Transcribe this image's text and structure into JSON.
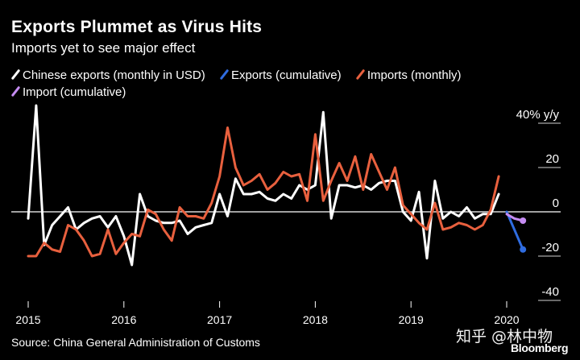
{
  "header": {
    "title": "Exports Plummet as Virus Hits",
    "subtitle": "Imports yet to see major effect"
  },
  "legend": [
    {
      "label": "Chinese exports (monthly in USD)",
      "color": "#ffffff"
    },
    {
      "label": "Exports (cumulative)",
      "color": "#2f6ce0"
    },
    {
      "label": "Imports (monthly)",
      "color": "#e8603e"
    },
    {
      "label": "Import (cumulative)",
      "color": "#c58cf2"
    }
  ],
  "footer": {
    "source": "Source: China General Administration of Customs",
    "watermark": "知乎 @林中物",
    "brand": "Bloomberg"
  },
  "chart_data": {
    "type": "line",
    "title": "Exports Plummet as Virus Hits",
    "ylabel": "% y/y",
    "ylim": [
      -45,
      40
    ],
    "xlim": [
      2014.92,
      2020.3
    ],
    "y_ticks": [
      {
        "value": 40,
        "label": "40% y/y"
      },
      {
        "value": 20,
        "label": "20"
      },
      {
        "value": 0,
        "label": "0"
      },
      {
        "value": -20,
        "label": "-20"
      },
      {
        "value": -40,
        "label": "-40"
      }
    ],
    "x_ticks": [
      {
        "value": 2015,
        "label": "2015"
      },
      {
        "value": 2016,
        "label": "2016"
      },
      {
        "value": 2017,
        "label": "2017"
      },
      {
        "value": 2018,
        "label": "2018"
      },
      {
        "value": 2019,
        "label": "2019"
      },
      {
        "value": 2020,
        "label": "2020"
      }
    ],
    "x_start": 2015.0,
    "x_step": 0.08333,
    "series": [
      {
        "name": "Chinese exports (monthly in USD)",
        "color": "#ffffff",
        "values": [
          -3,
          48,
          -15,
          -6,
          -2,
          2,
          -8,
          -5,
          -3,
          -2,
          -7,
          -2,
          -11,
          -24,
          8,
          -2,
          -4,
          -5,
          -5,
          -4,
          -10,
          -7,
          -6,
          -5,
          8,
          -2,
          15,
          8,
          8,
          9,
          6,
          5,
          8,
          6,
          12,
          10,
          12,
          45,
          -3,
          12,
          12,
          11,
          12,
          10,
          13,
          14,
          14,
          0,
          -4,
          9,
          -21,
          14,
          -3,
          0,
          -2,
          2,
          -3,
          -1,
          -1,
          8
        ],
        "x_start": 2015.0
      },
      {
        "name": "Exports (cumulative)",
        "color": "#2f6ce0",
        "points": [
          [
            2020.0,
            0
          ],
          [
            2020.17,
            -17
          ]
        ]
      },
      {
        "name": "Imports (monthly)",
        "color": "#e8603e",
        "values": [
          -20,
          -20,
          -14,
          -17,
          -18,
          -6,
          -8,
          -13,
          -20,
          -19,
          -8,
          -19,
          -14,
          -10,
          -11,
          1,
          -1,
          -8,
          -13,
          2,
          -2,
          -2,
          -3,
          4,
          16,
          38,
          20,
          12,
          14,
          17,
          10,
          13,
          18,
          16,
          17,
          5,
          35,
          5,
          14,
          22,
          14,
          25,
          10,
          26,
          18,
          10,
          20,
          3,
          -1,
          -5,
          -8,
          4,
          -8,
          -7,
          -5,
          -6,
          -8,
          -6,
          1,
          16
        ],
        "x_start": 2015.0
      },
      {
        "name": "Import (cumulative)",
        "color": "#c58cf2",
        "points": [
          [
            2020.0,
            -1
          ],
          [
            2020.08,
            -3
          ],
          [
            2020.17,
            -4
          ]
        ]
      }
    ]
  }
}
